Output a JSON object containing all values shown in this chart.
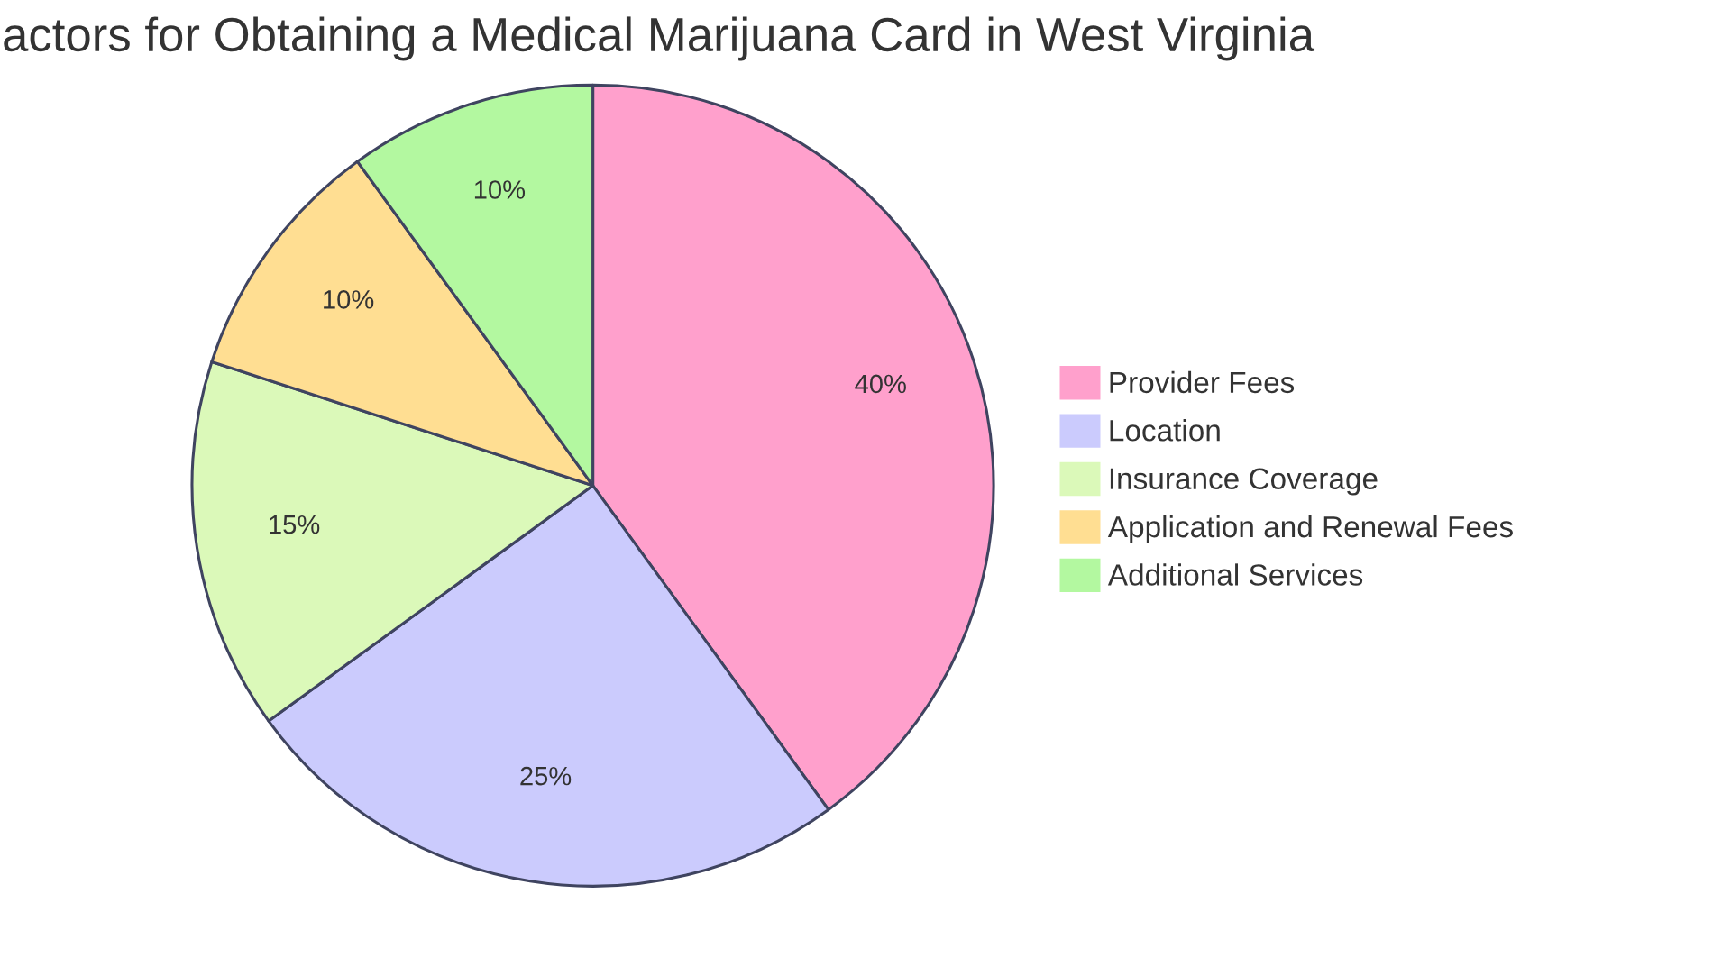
{
  "chart_data": {
    "type": "pie",
    "title": "actors for Obtaining a Medical Marijuana Card in West Virginia",
    "categories": [
      "Provider Fees",
      "Location",
      "Insurance Coverage",
      "Application and Renewal Fees",
      "Additional Services"
    ],
    "values": [
      40,
      25,
      15,
      10,
      10
    ],
    "colors": [
      "#ffa0cc",
      "#cbcbfd",
      "#dbf9b9",
      "#ffde92",
      "#b3f8a0"
    ],
    "value_labels": [
      "40%",
      "25%",
      "15%",
      "10%",
      "10%"
    ],
    "legend": "right"
  }
}
